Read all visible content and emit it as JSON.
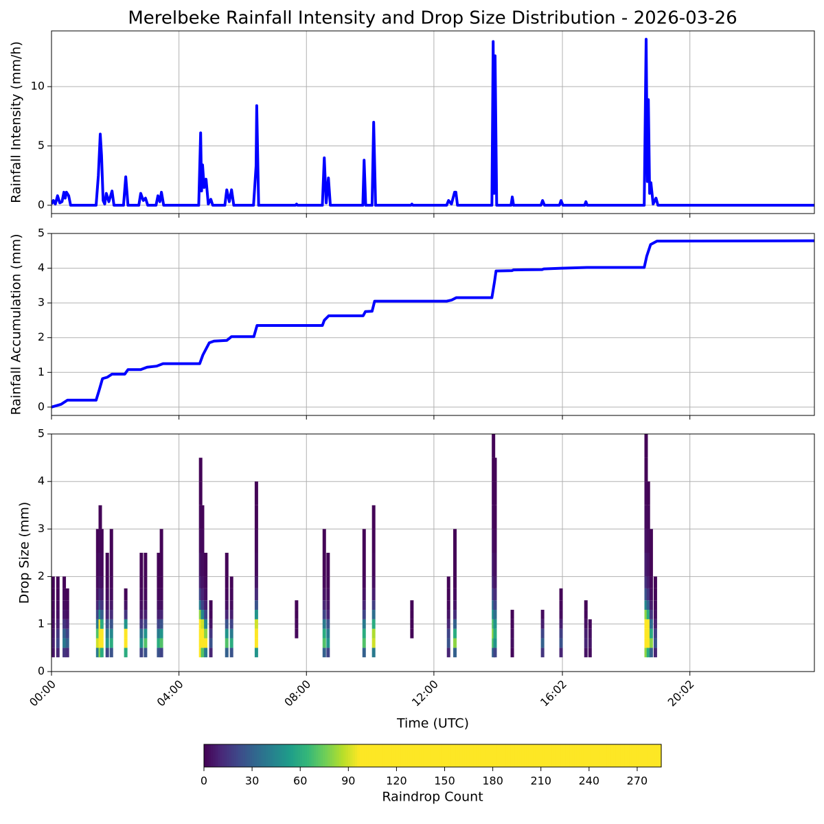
{
  "chart_data": [
    {
      "type": "line",
      "title": "Merelbeke Rainfall Intensity and Drop Size Distribution - 2026-03-26",
      "ylabel": "Rainfall Intensity (mm/h)",
      "color": "#0000ff",
      "grid": true,
      "ylim": [
        -0.7,
        14.7
      ],
      "yticks": [
        0,
        5,
        10
      ],
      "x": [
        0,
        0.06,
        0.12,
        0.19,
        0.26,
        0.33,
        0.39,
        0.43,
        0.47,
        0.54,
        0.6,
        1.4,
        1.47,
        1.53,
        1.57,
        1.62,
        1.67,
        1.72,
        1.8,
        1.9,
        1.96,
        2.26,
        2.33,
        2.4,
        2.74,
        2.8,
        2.88,
        2.95,
        3.02,
        3.28,
        3.34,
        3.4,
        3.45,
        3.52,
        4.62,
        4.68,
        4.71,
        4.74,
        4.79,
        4.85,
        4.92,
        5.0,
        5.06,
        5.44,
        5.5,
        5.58,
        5.65,
        5.72,
        6.34,
        6.42,
        6.44,
        6.5,
        7.66,
        7.69,
        7.72,
        8.5,
        8.56,
        8.62,
        8.69,
        8.75,
        9.77,
        9.81,
        9.86,
        10.06,
        10.11,
        10.17,
        11.28,
        11.31,
        11.34,
        12.4,
        12.46,
        12.55,
        12.65,
        12.69,
        12.74,
        13.82,
        13.86,
        13.89,
        13.92,
        13.97,
        14.42,
        14.46,
        14.5,
        15.36,
        15.41,
        15.47,
        15.94,
        15.99,
        16.05,
        16.73,
        16.77,
        16.81,
        18.6,
        18.66,
        18.7,
        18.73,
        18.77,
        18.81,
        18.88,
        18.97,
        19.03,
        23.95
      ],
      "values": [
        0.1,
        0.4,
        0.1,
        0.8,
        0.2,
        0.3,
        1.1,
        0.6,
        1.1,
        0.8,
        0,
        0,
        2.5,
        6.0,
        4.2,
        0.4,
        0.1,
        1.0,
        0.3,
        1.2,
        0,
        0,
        2.4,
        0,
        0,
        1.0,
        0.4,
        0.6,
        0,
        0,
        0.8,
        0.3,
        1.1,
        0,
        0,
        6.1,
        1.2,
        3.4,
        1.5,
        2.2,
        0.1,
        0.5,
        0,
        0,
        1.3,
        0.3,
        1.3,
        0,
        0,
        3.3,
        8.4,
        0,
        0,
        0.1,
        0,
        0,
        4.0,
        0.2,
        2.3,
        0,
        0,
        3.8,
        0,
        0,
        7.0,
        0,
        0,
        0.1,
        0,
        0,
        0.4,
        0.1,
        1.1,
        1.1,
        0,
        0,
        13.8,
        1.0,
        12.6,
        0,
        0,
        0.7,
        0,
        0,
        0.4,
        0,
        0,
        0.4,
        0,
        0,
        0.3,
        0,
        0,
        14.0,
        2.0,
        8.9,
        1.0,
        1.9,
        0.1,
        0.6,
        0,
        0
      ]
    },
    {
      "type": "line",
      "ylabel": "Rainfall Accumulation (mm)",
      "color": "#0000ff",
      "grid": true,
      "ylim": [
        -0.24,
        5.0
      ],
      "yticks": [
        0,
        1,
        2,
        3,
        4,
        5
      ],
      "x": [
        0,
        0.3,
        0.5,
        1.4,
        1.5,
        1.6,
        1.75,
        1.9,
        2.3,
        2.4,
        2.8,
        3.0,
        3.3,
        3.5,
        4.65,
        4.75,
        4.95,
        5.1,
        5.5,
        5.65,
        6.35,
        6.45,
        8.5,
        8.56,
        8.7,
        9.78,
        9.85,
        10.06,
        10.14,
        12.4,
        12.55,
        12.7,
        13.82,
        13.9,
        13.95,
        14.45,
        14.5,
        15.4,
        15.45,
        16.0,
        16.8,
        18.6,
        18.68,
        18.8,
        19.0,
        23.95
      ],
      "values": [
        0,
        0.08,
        0.2,
        0.2,
        0.5,
        0.82,
        0.86,
        0.95,
        0.95,
        1.08,
        1.08,
        1.15,
        1.18,
        1.25,
        1.25,
        1.5,
        1.85,
        1.9,
        1.92,
        2.03,
        2.03,
        2.35,
        2.35,
        2.5,
        2.63,
        2.63,
        2.75,
        2.76,
        3.05,
        3.05,
        3.08,
        3.15,
        3.15,
        3.6,
        3.92,
        3.93,
        3.95,
        3.96,
        3.98,
        4.0,
        4.02,
        4.02,
        4.35,
        4.68,
        4.78,
        4.79
      ]
    },
    {
      "type": "heatmap",
      "ylabel": "Drop Size (mm)",
      "xlabel": "Time (UTC)",
      "grid": true,
      "xlim": [
        0,
        23.94
      ],
      "xticks": [
        {
          "value": 0,
          "label": "00:00"
        },
        {
          "value": 4,
          "label": "04:00"
        },
        {
          "value": 8,
          "label": "08:00"
        },
        {
          "value": 12,
          "label": "12:00"
        },
        {
          "value": 16.033,
          "label": "16:02"
        },
        {
          "value": 20.033,
          "label": "20:02"
        }
      ],
      "ylim": [
        0,
        5
      ],
      "yticks": [
        0,
        1,
        2,
        3,
        4,
        5
      ],
      "size_bins": [
        0.3,
        0.5,
        0.7,
        0.9,
        1.1,
        1.3,
        1.5,
        1.75,
        2.0,
        2.5,
        3.0,
        3.5,
        4.0,
        4.5,
        5.0
      ],
      "columns": [
        {
          "x": 0.05,
          "counts": [
            5,
            8,
            6,
            4,
            3,
            2,
            1,
            1
          ]
        },
        {
          "x": 0.2,
          "counts": [
            10,
            20,
            15,
            8,
            4,
            2,
            1,
            1
          ]
        },
        {
          "x": 0.4,
          "counts": [
            15,
            40,
            30,
            15,
            6,
            3,
            2,
            1
          ]
        },
        {
          "x": 0.5,
          "counts": [
            12,
            30,
            20,
            10,
            4,
            2,
            1
          ]
        },
        {
          "x": 1.45,
          "counts": [
            40,
            90,
            70,
            40,
            20,
            10,
            5,
            3,
            2,
            1
          ]
        },
        {
          "x": 1.53,
          "counts": [
            80,
            150,
            140,
            100,
            50,
            25,
            12,
            6,
            4,
            2,
            1
          ]
        },
        {
          "x": 1.58,
          "counts": [
            60,
            120,
            100,
            60,
            30,
            15,
            8,
            4,
            2,
            1
          ]
        },
        {
          "x": 1.75,
          "counts": [
            20,
            50,
            40,
            25,
            10,
            5,
            3,
            1,
            1
          ]
        },
        {
          "x": 1.88,
          "counts": [
            25,
            60,
            45,
            25,
            12,
            6,
            3,
            2,
            1,
            1
          ]
        },
        {
          "x": 2.33,
          "counts": [
            60,
            130,
            110,
            50,
            15,
            5,
            1
          ]
        },
        {
          "x": 2.82,
          "counts": [
            20,
            50,
            35,
            15,
            6,
            3,
            2,
            1,
            1
          ]
        },
        {
          "x": 2.95,
          "counts": [
            25,
            70,
            50,
            20,
            8,
            3,
            2,
            1,
            1
          ]
        },
        {
          "x": 3.36,
          "counts": [
            25,
            60,
            40,
            20,
            8,
            4,
            2,
            1,
            1
          ]
        },
        {
          "x": 3.45,
          "counts": [
            20,
            70,
            50,
            25,
            10,
            4,
            2,
            1,
            1,
            1
          ]
        },
        {
          "x": 4.68,
          "counts": [
            100,
            200,
            180,
            140,
            80,
            40,
            20,
            10,
            6,
            3,
            2,
            1,
            1
          ]
        },
        {
          "x": 4.74,
          "counts": [
            70,
            160,
            130,
            90,
            45,
            20,
            10,
            5,
            3,
            2,
            1
          ]
        },
        {
          "x": 4.84,
          "counts": [
            40,
            100,
            80,
            45,
            20,
            8,
            4,
            2,
            1
          ]
        },
        {
          "x": 5.0,
          "counts": [
            10,
            25,
            15,
            5,
            2,
            1
          ]
        },
        {
          "x": 5.5,
          "counts": [
            30,
            70,
            50,
            25,
            10,
            4,
            2,
            1,
            1
          ]
        },
        {
          "x": 5.65,
          "counts": [
            25,
            60,
            40,
            20,
            8,
            3,
            2,
            1
          ]
        },
        {
          "x": 6.43,
          "counts": [
            50,
            110,
            130,
            90,
            50,
            25,
            12,
            6,
            3,
            2,
            1,
            1
          ]
        },
        {
          "x": 7.69,
          "counts": [
            0,
            0,
            2,
            2,
            1,
            1
          ]
        },
        {
          "x": 8.56,
          "counts": [
            30,
            70,
            60,
            40,
            20,
            10,
            5,
            2,
            1,
            1
          ]
        },
        {
          "x": 8.68,
          "counts": [
            20,
            50,
            40,
            25,
            10,
            5,
            3,
            1,
            1
          ]
        },
        {
          "x": 9.81,
          "counts": [
            30,
            70,
            60,
            40,
            20,
            10,
            5,
            2,
            1,
            1
          ]
        },
        {
          "x": 10.11,
          "counts": [
            40,
            90,
            85,
            60,
            35,
            18,
            8,
            4,
            2,
            1,
            1
          ]
        },
        {
          "x": 11.31,
          "counts": [
            0,
            0,
            1,
            1,
            1,
            1
          ]
        },
        {
          "x": 12.46,
          "counts": [
            10,
            25,
            20,
            10,
            5,
            2,
            1,
            1
          ]
        },
        {
          "x": 12.66,
          "counts": [
            30,
            80,
            60,
            30,
            12,
            5,
            3,
            1,
            1,
            1
          ]
        },
        {
          "x": 13.87,
          "counts": [
            30,
            70,
            80,
            70,
            50,
            35,
            20,
            12,
            8,
            5,
            3,
            2,
            1,
            1
          ]
        },
        {
          "x": 13.92,
          "counts": [
            20,
            50,
            60,
            50,
            35,
            20,
            12,
            6,
            4,
            2,
            1,
            1,
            1
          ]
        },
        {
          "x": 14.46,
          "counts": [
            2,
            4,
            3,
            2,
            1
          ]
        },
        {
          "x": 15.41,
          "counts": [
            15,
            30,
            20,
            8,
            3
          ]
        },
        {
          "x": 15.99,
          "counts": [
            10,
            25,
            18,
            8,
            3,
            2,
            1
          ]
        },
        {
          "x": 16.77,
          "counts": [
            5,
            10,
            8,
            4,
            2,
            1
          ]
        },
        {
          "x": 16.9,
          "counts": [
            3,
            6,
            4,
            2
          ]
        },
        {
          "x": 18.66,
          "counts": [
            80,
            180,
            170,
            130,
            80,
            45,
            25,
            14,
            8,
            5,
            3,
            2,
            1,
            1
          ]
        },
        {
          "x": 18.73,
          "counts": [
            60,
            150,
            140,
            100,
            60,
            30,
            15,
            8,
            5,
            3,
            2,
            1
          ]
        },
        {
          "x": 18.82,
          "counts": [
            30,
            80,
            60,
            35,
            15,
            7,
            3,
            2,
            1,
            1
          ]
        },
        {
          "x": 18.95,
          "counts": [
            10,
            25,
            18,
            8,
            4,
            2,
            1,
            1
          ]
        }
      ],
      "colormap": [
        "#440154",
        "#482878",
        "#3e4989",
        "#31688e",
        "#26828e",
        "#1f9e89",
        "#35b779",
        "#6ece58",
        "#b5de2b",
        "#fde725"
      ],
      "color_saturation": 97,
      "clim": [
        0,
        285
      ],
      "colorbar_label": "Raindrop Count",
      "colorbar_ticks": [
        0,
        30,
        60,
        90,
        120,
        150,
        180,
        210,
        240,
        270
      ]
    }
  ]
}
